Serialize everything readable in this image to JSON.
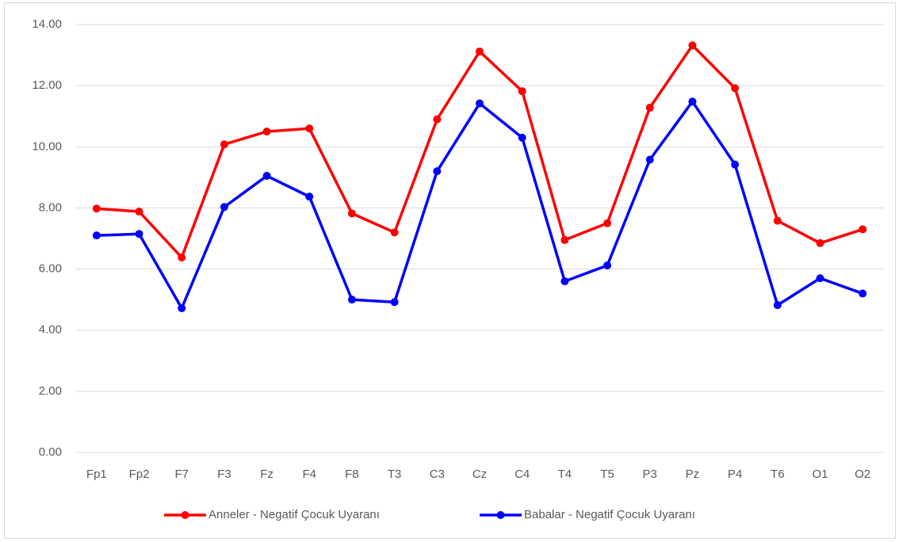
{
  "chart_data": {
    "type": "line",
    "categories": [
      "Fp1",
      "Fp2",
      "F7",
      "F3",
      "Fz",
      "F4",
      "F8",
      "T3",
      "C3",
      "Cz",
      "C4",
      "T4",
      "T5",
      "P3",
      "Pz",
      "P4",
      "T6",
      "O1",
      "O2"
    ],
    "series": [
      {
        "name": "Anneler - Negatif Çocuk Uyaranı",
        "color": "#ff0000",
        "values": [
          7.98,
          7.88,
          6.38,
          10.08,
          10.5,
          10.6,
          7.82,
          7.2,
          10.9,
          13.12,
          11.82,
          6.95,
          7.5,
          11.28,
          13.32,
          11.92,
          7.58,
          6.85,
          7.3
        ]
      },
      {
        "name": "Babalar - Negatif Çocuk Uyaranı",
        "color": "#0000ff",
        "values": [
          7.1,
          7.15,
          4.72,
          8.03,
          9.05,
          8.37,
          5.0,
          4.92,
          9.2,
          11.42,
          10.3,
          5.6,
          6.12,
          9.58,
          11.48,
          9.42,
          4.82,
          5.7,
          5.2
        ]
      }
    ],
    "ylim": [
      0,
      14
    ],
    "yticks": [
      {
        "value": 0,
        "label": "0.00"
      },
      {
        "value": 2,
        "label": "2.00"
      },
      {
        "value": 4,
        "label": "4.00"
      },
      {
        "value": 6,
        "label": "6.00"
      },
      {
        "value": 8,
        "label": "8.00"
      },
      {
        "value": 10,
        "label": "10.00"
      },
      {
        "value": 12,
        "label": "12.00"
      },
      {
        "value": 14,
        "label": "14.00"
      }
    ],
    "grid": true,
    "legend": "bottom"
  }
}
